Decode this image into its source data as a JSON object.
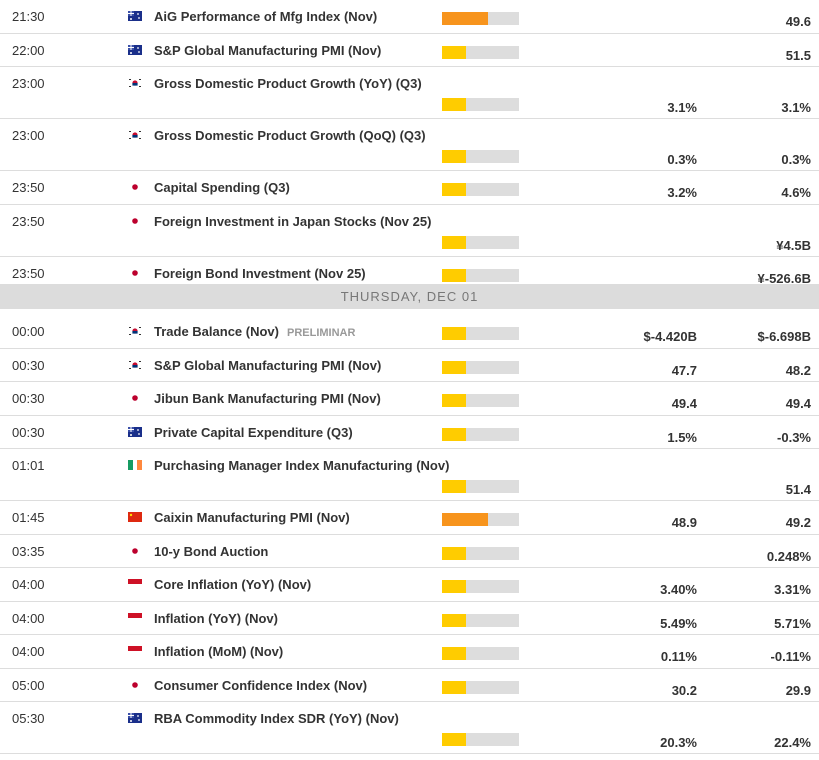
{
  "groups": [
    {
      "events": [
        {
          "time": "21:30",
          "event": "AiG Performance of Mfg Index (Nov)",
          "previous": "49.6",
          "impact_color": "#f7941d"
        },
        {
          "time": "22:00",
          "event": "S&P Global Manufacturing PMI (Nov)",
          "previous": "51.5",
          "impact_color": "#ffcc00"
        },
        {
          "time": "23:00",
          "event": "Gross Domestic Product Growth (YoY) (Q3)",
          "forecast": "3.1%",
          "previous": "3.1%",
          "impact_color": "#ffcc00"
        },
        {
          "time": "23:00",
          "event": "Gross Domestic Product Growth (QoQ) (Q3)",
          "forecast": "0.3%",
          "previous": "0.3%",
          "impact_color": "#ffcc00"
        },
        {
          "time": "23:50",
          "event": "Capital Spending (Q3)",
          "forecast": "3.2%",
          "previous": "4.6%",
          "impact_color": "#ffcc00"
        },
        {
          "time": "23:50",
          "event": "Foreign Investment in Japan Stocks (Nov 25)",
          "previous": "¥4.5B",
          "impact_color": "#ffcc00"
        },
        {
          "time": "23:50",
          "event": "Foreign Bond Investment (Nov 25)",
          "previous": "¥-526.6B",
          "impact_color": "#ffcc00"
        }
      ]
    },
    {
      "header": "THURSDAY, DEC 01",
      "events": [
        {
          "time": "00:00",
          "event": "Trade Balance (Nov)",
          "tag": "PRELIMINAR",
          "forecast": "$-4.420B",
          "previous": "$-6.698B",
          "impact_color": "#ffcc00"
        },
        {
          "time": "00:30",
          "event": "S&P Global Manufacturing PMI (Nov)",
          "forecast": "47.7",
          "previous": "48.2",
          "impact_color": "#ffcc00"
        },
        {
          "time": "00:30",
          "event": "Jibun Bank Manufacturing PMI (Nov)",
          "forecast": "49.4",
          "previous": "49.4",
          "impact_color": "#ffcc00"
        },
        {
          "time": "00:30",
          "event": "Private Capital Expenditure (Q3)",
          "forecast": "1.5%",
          "previous": "-0.3%",
          "impact_color": "#ffcc00"
        },
        {
          "time": "01:01",
          "event": "Purchasing Manager Index Manufacturing (Nov)",
          "previous": "51.4",
          "impact_color": "#ffcc00"
        },
        {
          "time": "01:45",
          "event": "Caixin Manufacturing PMI (Nov)",
          "forecast": "48.9",
          "previous": "49.2",
          "impact_color": "#f7941d"
        },
        {
          "time": "03:35",
          "event": "10-y Bond Auction",
          "previous": "0.248%",
          "impact_color": "#ffcc00"
        },
        {
          "time": "04:00",
          "event": "Core Inflation (YoY) (Nov)",
          "forecast": "3.40%",
          "previous": "3.31%",
          "impact_color": "#ffcc00"
        },
        {
          "time": "04:00",
          "event": "Inflation (YoY) (Nov)",
          "forecast": "5.49%",
          "previous": "5.71%",
          "impact_color": "#ffcc00"
        },
        {
          "time": "04:00",
          "event": "Inflation (MoM) (Nov)",
          "forecast": "0.11%",
          "previous": "-0.11%",
          "impact_color": "#ffcc00"
        },
        {
          "time": "05:00",
          "event": "Consumer Confidence Index (Nov)",
          "forecast": "30.2",
          "previous": "29.9",
          "impact_color": "#ffcc00"
        },
        {
          "time": "05:30",
          "event": "RBA Commodity Index SDR (YoY) (Nov)",
          "forecast": "20.3%",
          "previous": "22.4%",
          "impact_color": "#ffcc00"
        }
      ]
    }
  ]
}
